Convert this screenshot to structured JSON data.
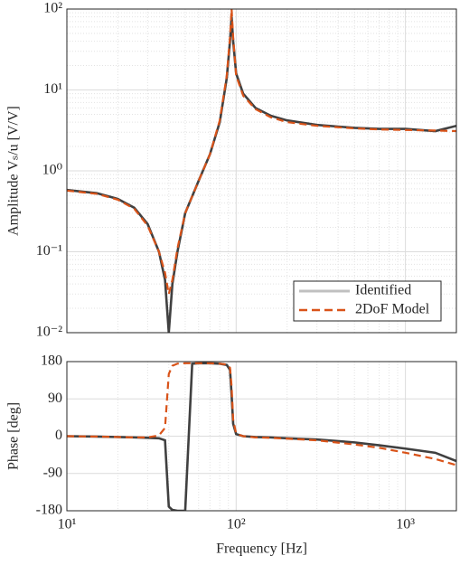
{
  "chart_data": [
    {
      "type": "line",
      "ylabel": "Amplitude Vₛ/u [V/V]",
      "xscale": "log",
      "yscale": "log",
      "grid": true,
      "legend": "lower right",
      "xlim": [
        10,
        2000
      ],
      "ylim": [
        0.01,
        100
      ],
      "yticks": [
        {
          "value": 0.01,
          "label": "10⁻²"
        },
        {
          "value": 0.1,
          "label": "10⁻¹"
        },
        {
          "value": 1,
          "label": "10⁰"
        },
        {
          "value": 10,
          "label": "10¹"
        },
        {
          "value": 100,
          "label": "10²"
        }
      ],
      "x": [
        10,
        15,
        20,
        25,
        30,
        35,
        38,
        40,
        42,
        45,
        50,
        60,
        70,
        80,
        88,
        92,
        94,
        96,
        100,
        110,
        130,
        160,
        200,
        300,
        500,
        700,
        1000,
        1500,
        2000
      ],
      "series": [
        {
          "name": "Identified",
          "color": "#404040",
          "legend_color": "#c0c0c0",
          "style": "solid",
          "values": [
            0.58,
            0.53,
            0.45,
            0.35,
            0.22,
            0.1,
            0.045,
            0.01,
            0.04,
            0.1,
            0.3,
            0.75,
            1.6,
            4,
            14,
            40,
            80,
            40,
            16,
            9,
            6,
            4.8,
            4.2,
            3.7,
            3.4,
            3.3,
            3.3,
            3.1,
            3.6
          ]
        },
        {
          "name": "2DoF Model",
          "color": "#d95319",
          "style": "dashed",
          "values": [
            0.57,
            0.52,
            0.44,
            0.34,
            0.21,
            0.1,
            0.055,
            0.03,
            0.045,
            0.11,
            0.3,
            0.75,
            1.6,
            4.2,
            15,
            45,
            100,
            45,
            15,
            8.5,
            5.8,
            4.6,
            4,
            3.6,
            3.35,
            3.25,
            3.2,
            3.15,
            3.1
          ]
        }
      ]
    },
    {
      "type": "line",
      "ylabel": "Phase [deg]",
      "xlabel": "Frequency [Hz]",
      "xscale": "log",
      "grid": true,
      "xlim": [
        10,
        2000
      ],
      "ylim": [
        -180,
        180
      ],
      "xticks": [
        {
          "value": 10,
          "label": "10¹"
        },
        {
          "value": 100,
          "label": "10²"
        },
        {
          "value": 1000,
          "label": "10³"
        }
      ],
      "yticks": [
        -180,
        -90,
        0,
        90,
        180
      ],
      "x": [
        10,
        15,
        20,
        25,
        30,
        35,
        38,
        40,
        42,
        45,
        50,
        55,
        60,
        70,
        80,
        88,
        92,
        94,
        96,
        100,
        110,
        130,
        160,
        200,
        300,
        500,
        700,
        1000,
        1500,
        2000
      ],
      "series": [
        {
          "color": "#404040",
          "style": "solid",
          "values": [
            0,
            -1,
            -2,
            -3,
            -4,
            -5,
            -10,
            -170,
            -178,
            -180,
            -180,
            175,
            176,
            176,
            175,
            172,
            160,
            100,
            30,
            5,
            0,
            -2,
            -3,
            -5,
            -8,
            -15,
            -22,
            -30,
            -40,
            -60
          ]
        },
        {
          "color": "#d95319",
          "style": "dashed",
          "values": [
            0,
            -1,
            -2,
            -3,
            -3,
            2,
            20,
            150,
            170,
            175,
            176,
            176,
            176,
            176,
            175,
            173,
            165,
            120,
            40,
            6,
            0,
            -3,
            -4,
            -6,
            -10,
            -20,
            -28,
            -40,
            -55,
            -70
          ]
        }
      ]
    }
  ]
}
